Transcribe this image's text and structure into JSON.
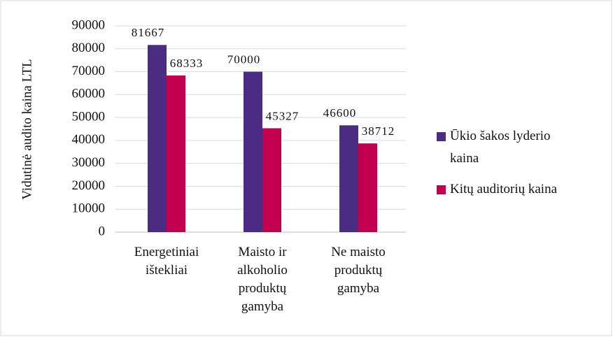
{
  "chart_data": {
    "type": "bar",
    "ylabel": "Vidutinė audito kaina LTL",
    "categories": [
      "Energetiniai ištekliai",
      "Maisto ir alkoholio produktų gamyba",
      "Ne maisto produktų gamyba"
    ],
    "series": [
      {
        "name": "Ūkio šakos lyderio kaina",
        "color": "#4b2c83",
        "values": [
          81667,
          70000,
          46600
        ]
      },
      {
        "name": "Kitų auditorių kaina",
        "color": "#c2004f",
        "values": [
          68333,
          45327,
          38712
        ]
      }
    ],
    "ylim": [
      0,
      90000
    ],
    "yticks": [
      0,
      10000,
      20000,
      30000,
      40000,
      50000,
      60000,
      70000,
      80000,
      90000
    ],
    "grid": true,
    "legend": "right"
  }
}
